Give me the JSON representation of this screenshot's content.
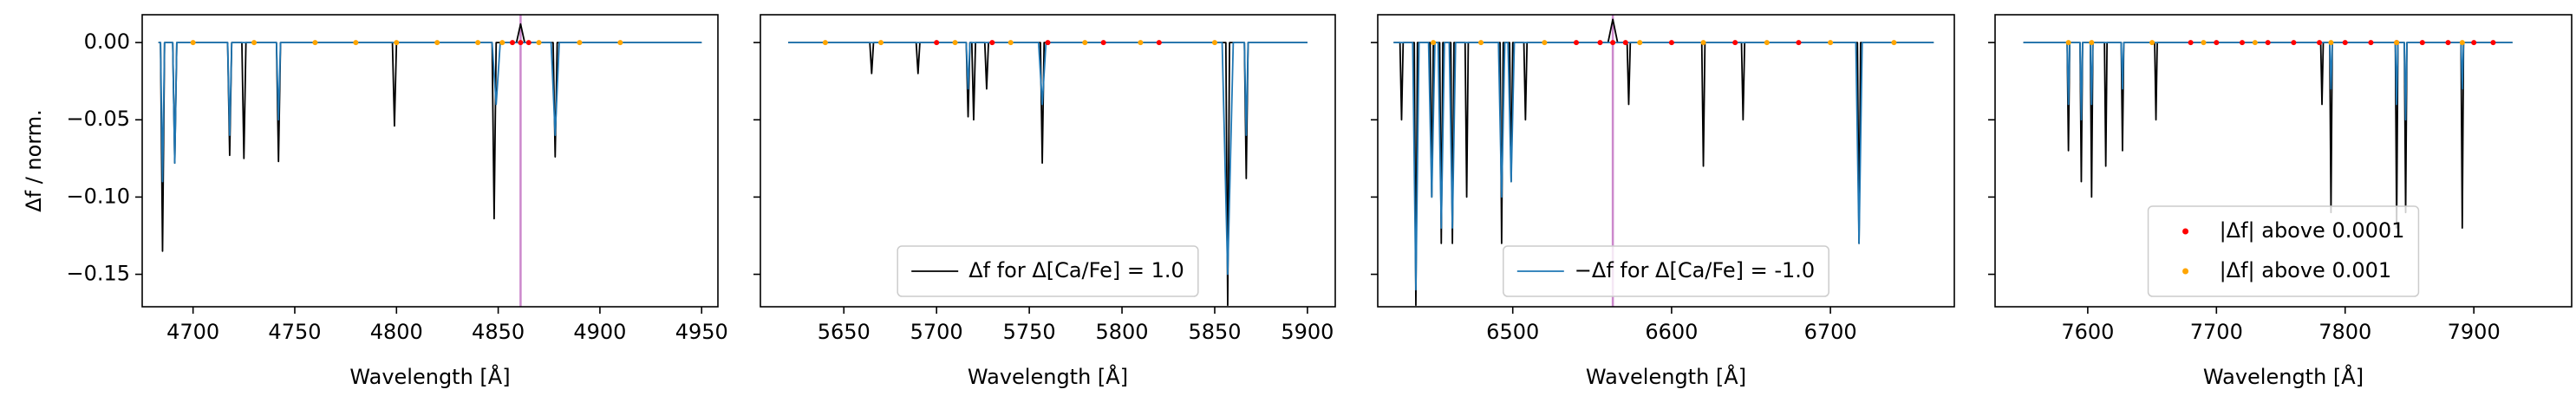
{
  "chart_data": [
    {
      "type": "line",
      "xlabel": "Wavelength [Å]",
      "ylabel": "Δf / norm.",
      "xlim": [
        4675,
        4958
      ],
      "xticks": [
        4700,
        4750,
        4800,
        4850,
        4900,
        4950
      ],
      "ylim": [
        -0.171,
        0.018
      ],
      "yticks": [
        {
          "value": -0.15,
          "label": "−0.15"
        },
        {
          "value": -0.1,
          "label": "−0.10"
        },
        {
          "value": -0.05,
          "label": "−0.05"
        },
        {
          "value": 0,
          "label": "0.00"
        }
      ],
      "vlines": [
        4861
      ],
      "vline_color": "#cc88cc",
      "series": [
        {
          "style": "line",
          "color": "#000000",
          "x": [
            4683,
            4684,
            4685,
            4686,
            4690,
            4691,
            4692,
            4717,
            4718,
            4719,
            4724,
            4725,
            4726,
            4741,
            4742,
            4743,
            4798,
            4799,
            4800,
            4847,
            4848,
            4849,
            4859,
            4861,
            4863,
            4877,
            4878,
            4879,
            4950
          ],
          "values": [
            0,
            0,
            -0.135,
            0,
            0,
            -0.078,
            0,
            0,
            -0.073,
            0,
            0,
            -0.075,
            0,
            0,
            -0.077,
            0,
            0,
            -0.054,
            0,
            0,
            -0.114,
            0,
            0,
            0.012,
            0,
            0,
            -0.074,
            0,
            0
          ]
        },
        {
          "style": "line",
          "color": "#1f77b4",
          "x": [
            4683,
            4684,
            4685,
            4686,
            4690,
            4691,
            4692,
            4717,
            4718,
            4719,
            4741,
            4742,
            4743,
            4847,
            4849,
            4851,
            4876,
            4878,
            4880,
            4950
          ],
          "values": [
            0,
            0,
            -0.09,
            0,
            0,
            -0.078,
            0,
            0,
            -0.06,
            0,
            0,
            -0.05,
            0,
            0,
            -0.04,
            0,
            0,
            -0.06,
            0,
            0
          ]
        },
        {
          "style": "points",
          "color": "#ff0000",
          "x": [
            4857,
            4861,
            4865
          ],
          "values": [
            0,
            0,
            0
          ]
        },
        {
          "style": "points",
          "color": "#ffa500",
          "x": [
            4700,
            4730,
            4760,
            4780,
            4800,
            4820,
            4840,
            4852,
            4870,
            4890,
            4910
          ],
          "values": [
            0,
            0,
            0,
            0,
            0,
            0,
            0,
            0,
            0,
            0,
            0
          ]
        }
      ]
    },
    {
      "type": "line",
      "xlabel": "Wavelength [Å]",
      "xlim": [
        5605,
        5915
      ],
      "xticks": [
        5650,
        5700,
        5750,
        5800,
        5850,
        5900
      ],
      "ylim": [
        -0.171,
        0.018
      ],
      "yticks": [
        -0.15,
        -0.1,
        -0.05,
        0
      ],
      "legend": "lower center",
      "series": [
        {
          "style": "line",
          "color": "#000000",
          "name": "Δf for Δ[Ca/Fe] = 1.0",
          "x": [
            5620,
            5664,
            5665,
            5666,
            5689,
            5690,
            5691,
            5716,
            5717,
            5718,
            5719,
            5720,
            5721,
            5726,
            5727,
            5728,
            5756,
            5757,
            5758,
            5856,
            5857,
            5858,
            5866,
            5867,
            5868,
            5900
          ],
          "values": [
            0,
            0,
            -0.02,
            0,
            0,
            -0.02,
            0,
            0,
            -0.048,
            0,
            0,
            -0.05,
            0,
            0,
            -0.03,
            0,
            0,
            -0.078,
            0,
            0,
            -0.17,
            0,
            0,
            -0.088,
            0,
            0
          ]
        },
        {
          "style": "line",
          "color": "#1f77b4",
          "x": [
            5620,
            5716,
            5717,
            5718,
            5755,
            5757,
            5759,
            5854,
            5857,
            5860,
            5866,
            5867,
            5868,
            5900
          ],
          "values": [
            0,
            0,
            -0.03,
            0,
            0,
            -0.04,
            0,
            0,
            -0.15,
            0,
            0,
            -0.06,
            0,
            0
          ]
        },
        {
          "style": "points",
          "color": "#ff0000",
          "x": [
            5700,
            5730,
            5760,
            5790,
            5820
          ],
          "values": [
            0,
            0,
            0,
            0,
            0
          ]
        },
        {
          "style": "points",
          "color": "#ffa500",
          "x": [
            5640,
            5670,
            5710,
            5740,
            5780,
            5810,
            5850
          ],
          "values": [
            0,
            0,
            0,
            0,
            0,
            0,
            0
          ]
        }
      ]
    },
    {
      "type": "line",
      "xlabel": "Wavelength [Å]",
      "xlim": [
        6415,
        6778
      ],
      "xticks": [
        6500,
        6600,
        6700
      ],
      "ylim": [
        -0.171,
        0.018
      ],
      "yticks": [
        -0.15,
        -0.1,
        -0.05,
        0
      ],
      "vlines": [
        6563
      ],
      "vline_color": "#cc88cc",
      "legend": "lower center",
      "series": [
        {
          "style": "line",
          "color": "#000000",
          "x": [
            6425,
            6429,
            6430,
            6431,
            6438,
            6439,
            6440,
            6448,
            6449,
            6450,
            6454,
            6455,
            6456,
            6461,
            6462,
            6463,
            6470,
            6471,
            6472,
            6492,
            6493,
            6494,
            6498,
            6499,
            6500,
            6507,
            6508,
            6509,
            6560,
            6563,
            6566,
            6572,
            6573,
            6574,
            6619,
            6620,
            6621,
            6644,
            6645,
            6646,
            6717,
            6718,
            6719,
            6765
          ],
          "values": [
            0,
            0,
            -0.05,
            0,
            0,
            -0.17,
            0,
            0,
            -0.1,
            0,
            0,
            -0.13,
            0,
            0,
            -0.13,
            0,
            0,
            -0.1,
            0,
            0,
            -0.13,
            0,
            0,
            -0.09,
            0,
            0,
            -0.05,
            0,
            0,
            0.015,
            0,
            0,
            -0.04,
            0,
            0,
            -0.08,
            0,
            0,
            -0.05,
            0,
            0,
            -0.13,
            0,
            0
          ]
        },
        {
          "style": "line",
          "color": "#1f77b4",
          "name": "−Δf for Δ[Ca/Fe] = -1.0",
          "x": [
            6425,
            6437,
            6439,
            6441,
            6447,
            6449,
            6451,
            6453,
            6455,
            6457,
            6460,
            6462,
            6464,
            6491,
            6493,
            6495,
            6497,
            6499,
            6501,
            6716,
            6718,
            6720,
            6765
          ],
          "values": [
            0,
            0,
            -0.16,
            0,
            0,
            -0.1,
            0,
            0,
            -0.12,
            0,
            0,
            -0.12,
            0,
            0,
            -0.1,
            0,
            0,
            -0.09,
            0,
            0,
            -0.13,
            0,
            0
          ]
        },
        {
          "style": "points",
          "color": "#ff0000",
          "x": [
            6540,
            6555,
            6563,
            6571,
            6600,
            6640,
            6680
          ],
          "values": [
            0,
            0,
            0,
            0,
            0,
            0,
            0
          ]
        },
        {
          "style": "points",
          "color": "#ffa500",
          "x": [
            6450,
            6480,
            6520,
            6580,
            6620,
            6660,
            6700,
            6740
          ],
          "values": [
            0,
            0,
            0,
            0,
            0,
            0,
            0,
            0
          ]
        }
      ]
    },
    {
      "type": "line",
      "xlabel": "Wavelength [Å]",
      "xlim": [
        7528,
        7976
      ],
      "xticks": [
        7600,
        7700,
        7800,
        7900
      ],
      "ylim": [
        -0.171,
        0.018
      ],
      "yticks": [
        -0.15,
        -0.1,
        -0.05,
        0
      ],
      "legend": "lower center",
      "series": [
        {
          "style": "line",
          "color": "#000000",
          "x": [
            7550,
            7584,
            7585,
            7586,
            7594,
            7595,
            7596,
            7602,
            7603,
            7604,
            7613,
            7614,
            7615,
            7626,
            7627,
            7628,
            7652,
            7653,
            7654,
            7781,
            7782,
            7783,
            7788,
            7789,
            7790,
            7839,
            7840,
            7841,
            7846,
            7847,
            7848,
            7890,
            7891,
            7892,
            7930
          ],
          "values": [
            0,
            0,
            -0.07,
            0,
            0,
            -0.09,
            0,
            0,
            -0.1,
            0,
            0,
            -0.08,
            0,
            0,
            -0.07,
            0,
            0,
            -0.05,
            0,
            0,
            -0.04,
            0,
            0,
            -0.11,
            0,
            0,
            -0.12,
            0,
            0,
            -0.11,
            0,
            0,
            -0.12,
            0,
            0
          ]
        },
        {
          "style": "line",
          "color": "#1f77b4",
          "x": [
            7550,
            7584,
            7585,
            7586,
            7594,
            7595,
            7596,
            7602,
            7603,
            7604,
            7626,
            7627,
            7628,
            7788,
            7789,
            7790,
            7839,
            7840,
            7841,
            7846,
            7847,
            7848,
            7890,
            7891,
            7892,
            7930
          ],
          "values": [
            0,
            0,
            -0.04,
            0,
            0,
            -0.05,
            0,
            0,
            -0.04,
            0,
            0,
            -0.03,
            0,
            0,
            -0.03,
            0,
            0,
            -0.04,
            0,
            0,
            -0.05,
            0,
            0,
            -0.03,
            0,
            0
          ]
        },
        {
          "style": "points",
          "color": "#ff0000",
          "name": "|Δf| above 0.0001",
          "x": [
            7680,
            7700,
            7720,
            7740,
            7760,
            7780,
            7800,
            7820,
            7840,
            7860,
            7880,
            7900,
            7915
          ],
          "values": [
            0,
            0,
            0,
            0,
            0,
            0,
            0,
            0,
            0,
            0,
            0,
            0,
            0
          ]
        },
        {
          "style": "points",
          "color": "#ffa500",
          "name": "|Δf| above 0.001",
          "x": [
            7585,
            7603,
            7650,
            7690,
            7730,
            7789,
            7840,
            7891
          ],
          "values": [
            0,
            0,
            0,
            0,
            0,
            0,
            0,
            0
          ]
        }
      ]
    }
  ]
}
